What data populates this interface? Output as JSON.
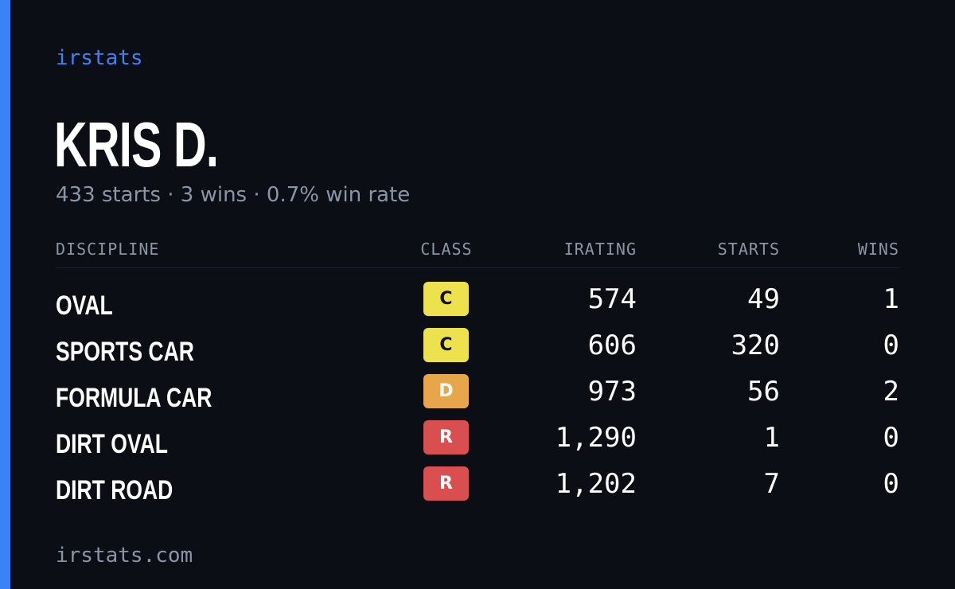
{
  "brand": "irstats",
  "driver": {
    "name": "KRIS D.",
    "summary": "433 starts · 3 wins · 0.7% win rate"
  },
  "table": {
    "headers": {
      "discipline": "DISCIPLINE",
      "class": "CLASS",
      "irating": "IRATING",
      "starts": "STARTS",
      "wins": "WINS"
    },
    "rows": [
      {
        "discipline": "OVAL",
        "class": "C",
        "irating": "574",
        "starts": "49",
        "wins": "1"
      },
      {
        "discipline": "SPORTS CAR",
        "class": "C",
        "irating": "606",
        "starts": "320",
        "wins": "0"
      },
      {
        "discipline": "FORMULA CAR",
        "class": "D",
        "irating": "973",
        "starts": "56",
        "wins": "2"
      },
      {
        "discipline": "DIRT OVAL",
        "class": "R",
        "irating": "1,290",
        "starts": "1",
        "wins": "0"
      },
      {
        "discipline": "DIRT ROAD",
        "class": "R",
        "irating": "1,202",
        "starts": "7",
        "wins": "0"
      }
    ]
  },
  "class_colors": {
    "C": {
      "bg": "#ede24e",
      "fg": "#111111"
    },
    "D": {
      "bg": "#e8a64a",
      "fg": "#ffffff"
    },
    "R": {
      "bg": "#d94f4f",
      "fg": "#ffffff"
    }
  },
  "colors": {
    "accent": "#3b82f6",
    "background": "#0b0e14",
    "muted": "#8b95a7"
  },
  "footer": "irstats.com"
}
